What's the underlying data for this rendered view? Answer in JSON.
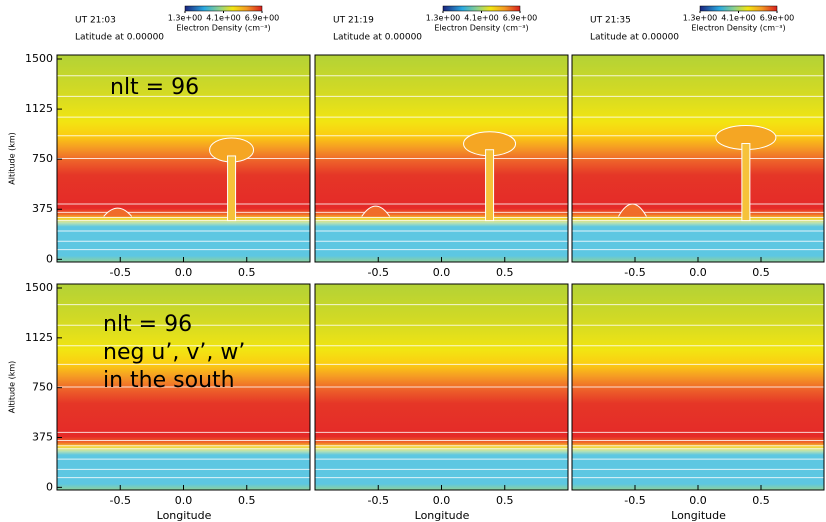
{
  "chart_data": [
    {
      "type": "contour",
      "ut": "UT 21:03",
      "latitude": "Latitude at 0.00000",
      "colorbar": {
        "label": "Electron Density (cm⁻³)",
        "lim": [
          1.3,
          6.9
        ],
        "ticks": [
          {
            "value": 1.3,
            "label": "1.3e+00"
          },
          {
            "value": 4.1,
            "label": "4.1e+00"
          },
          {
            "value": 6.9,
            "label": "6.9e+00"
          }
        ]
      },
      "ylabel": "Altitude (km)",
      "annotation": [
        "nlt = 96"
      ],
      "xlim": [
        -1,
        1
      ],
      "ylim": [
        -20,
        1530
      ],
      "xticks": [
        -0.5,
        {
          "value": 0,
          "label": "0.0"
        },
        0.5
      ],
      "yticks": [
        0,
        375,
        750,
        1125,
        1500
      ]
    },
    {
      "type": "contour",
      "ut": "UT 21:19",
      "latitude": "Latitude at 0.00000",
      "colorbar": {
        "label": "Electron Density (cm⁻³)",
        "lim": [
          1.3,
          6.9
        ],
        "ticks": [
          {
            "value": 1.3,
            "label": "1.3e+00"
          },
          {
            "value": 4.1,
            "label": "4.1e+00"
          },
          {
            "value": 6.9,
            "label": "6.9e+00"
          }
        ]
      },
      "xlim": [
        -1,
        1
      ],
      "ylim": [
        -20,
        1530
      ],
      "xticks": [
        -0.5,
        {
          "value": 0,
          "label": "0.0"
        },
        0.5
      ]
    },
    {
      "type": "contour",
      "ut": "UT 21:35",
      "latitude": "Latitude at 0.00000",
      "colorbar": {
        "label": "Electron Density (cm⁻³)",
        "lim": [
          1.3,
          6.9
        ],
        "ticks": [
          {
            "value": 1.3,
            "label": "1.3e+00"
          },
          {
            "value": 4.1,
            "label": "4.1e+00"
          },
          {
            "value": 6.9,
            "label": "6.9e+00"
          }
        ]
      },
      "xlim": [
        -1,
        1
      ],
      "ylim": [
        -20,
        1530
      ],
      "xticks": [
        -0.5,
        {
          "value": 0,
          "label": "0.0"
        },
        0.5
      ]
    },
    {
      "type": "contour",
      "ylabel": "Altitude (km)",
      "xlabel": "Longitude",
      "annotation": [
        "nlt = 96",
        "neg u’, v’, w’",
        "in the south"
      ],
      "xlim": [
        -1,
        1
      ],
      "ylim": [
        -20,
        1530
      ],
      "xticks": [
        -0.5,
        {
          "value": 0,
          "label": "0.0"
        },
        0.5
      ],
      "yticks": [
        0,
        375,
        750,
        1125,
        1500
      ]
    },
    {
      "type": "contour",
      "xlabel": "Longitude",
      "xlim": [
        -1,
        1
      ],
      "ylim": [
        -20,
        1530
      ],
      "xticks": [
        -0.5,
        {
          "value": 0,
          "label": "0.0"
        },
        0.5
      ]
    },
    {
      "type": "contour",
      "xlabel": "Longitude",
      "xlim": [
        -1,
        1
      ],
      "ylim": [
        -20,
        1530
      ],
      "xticks": [
        -0.5,
        {
          "value": 0,
          "label": "0.0"
        },
        0.5
      ]
    }
  ]
}
